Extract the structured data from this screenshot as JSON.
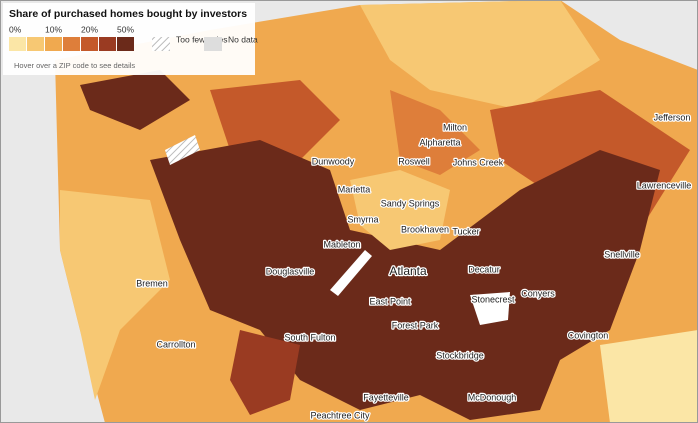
{
  "legend": {
    "title": "Share of purchased homes bought by investors",
    "colors": [
      "#fbe6a6",
      "#f7c873",
      "#f0a94f",
      "#de7e3a",
      "#c4592a",
      "#9a3b22",
      "#6b2a1a"
    ],
    "labels": [
      "0%",
      "10%",
      "20%",
      "50%"
    ],
    "too_few": "Too few sales",
    "no_data": "No data",
    "note": "Hover over a ZIP code to see details"
  },
  "places": [
    "Milton",
    "Alpharetta",
    "Roswell",
    "Johns Creek",
    "Dunwoody",
    "Marietta",
    "Sandy Springs",
    "Smyrna",
    "Brookhaven",
    "Tucker",
    "Mableton",
    "Atlanta",
    "Decatur",
    "Douglasville",
    "Stonecrest",
    "Snellville",
    "Conyers",
    "Bremen",
    "Carrollton",
    "South Fulton",
    "East Point",
    "Forest Park",
    "Stockbridge",
    "Covington",
    "Jefferson",
    "Lawrenceville",
    "Fayetteville",
    "Peachtree City",
    "McDonough"
  ]
}
